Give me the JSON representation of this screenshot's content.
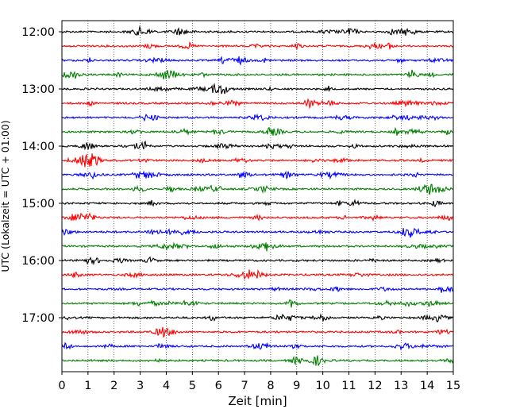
{
  "chart_data": {
    "type": "line",
    "title": "",
    "xlabel": "Zeit  [min]",
    "ylabel": "UTC (Lokalzeit = UTC + 01:00)",
    "xlim": [
      0,
      15
    ],
    "x_ticks": [
      "0",
      "1",
      "2",
      "3",
      "4",
      "5",
      "6",
      "7",
      "8",
      "9",
      "10",
      "11",
      "12",
      "13",
      "14",
      "15"
    ],
    "y_ticks": [
      "12:00",
      "13:00",
      "14:00",
      "15:00",
      "16:00",
      "17:00"
    ],
    "grid": "vertical dotted",
    "legend": "none",
    "trace_colors": [
      "#000000",
      "#ff0000",
      "#0000ff",
      "#008000"
    ],
    "traces": [
      {
        "start": "12:00"
      },
      {
        "start": "12:15"
      },
      {
        "start": "12:30"
      },
      {
        "start": "12:45"
      },
      {
        "start": "13:00"
      },
      {
        "start": "13:15"
      },
      {
        "start": "13:30"
      },
      {
        "start": "13:45"
      },
      {
        "start": "14:00"
      },
      {
        "start": "14:15"
      },
      {
        "start": "14:30"
      },
      {
        "start": "14:45"
      },
      {
        "start": "15:00"
      },
      {
        "start": "15:15"
      },
      {
        "start": "15:30"
      },
      {
        "start": "15:45"
      },
      {
        "start": "16:00"
      },
      {
        "start": "16:15"
      },
      {
        "start": "16:30"
      },
      {
        "start": "16:45"
      },
      {
        "start": "17:00"
      },
      {
        "start": "17:15"
      },
      {
        "start": "17:30"
      },
      {
        "start": "17:45"
      }
    ]
  }
}
